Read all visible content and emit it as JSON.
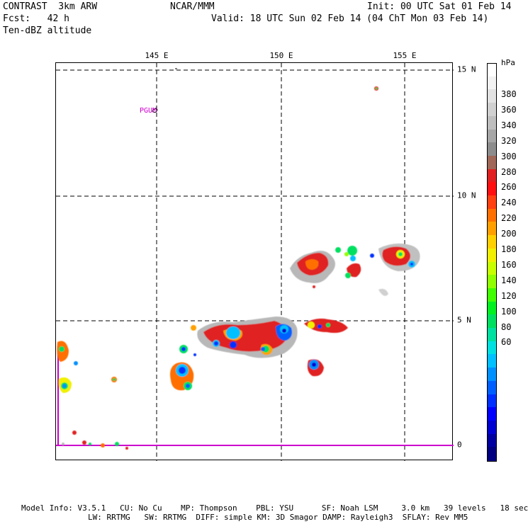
{
  "header": {
    "model": "CONTRAST  3km ARW",
    "center": "NCAR/MMM",
    "init": "Init: 00 UTC Sat 01 Feb 14",
    "fcst": "Fcst:   42 h",
    "valid": "Valid: 18 UTC Sun 02 Feb 14 (04 ChT Mon 03 Feb 14)",
    "field": "Ten-dBZ altitude"
  },
  "map": {
    "lon_labels": [
      "145 E",
      "150 E",
      "155 E"
    ],
    "lat_labels": [
      "15 N",
      "10 N",
      "5 N",
      "0"
    ],
    "place_label": "PGUM",
    "colors": {
      "grid": "#000000",
      "boundary": "#cc00cc"
    }
  },
  "colorbar": {
    "unit": "hPa",
    "labels": [
      "380",
      "360",
      "340",
      "320",
      "300",
      "280",
      "260",
      "240",
      "220",
      "200",
      "180",
      "160",
      "140",
      "120",
      "100",
      "80",
      "60"
    ],
    "colors": [
      "#ffffff",
      "#f2f2f2",
      "#e2e2e2",
      "#d0d0d0",
      "#bebebe",
      "#a6a6a6",
      "#8c8c8c",
      "#a06858",
      "#e02020",
      "#ff1010",
      "#ff4010",
      "#ff7000",
      "#ffa000",
      "#ffd000",
      "#f0f000",
      "#c8ff00",
      "#90ff00",
      "#40ff00",
      "#00f020",
      "#00e060",
      "#00e0a0",
      "#00e0e0",
      "#00c0ff",
      "#0090ff",
      "#0060ff",
      "#0030ff",
      "#0000ff",
      "#0000d0",
      "#0000a0",
      "#000080"
    ]
  },
  "footer": {
    "line1": "Model Info: V3.5.1   CU: No Cu    MP: Thompson    PBL: YSU      SF: Noah LSM     3.0 km   39 levels   18 sec",
    "line2": "LW: RRTMG   SW: RRTMG  DIFF: simple KM: 3D Smagor DAMP: Rayleigh3  SFLAY: Rev MM5"
  }
}
